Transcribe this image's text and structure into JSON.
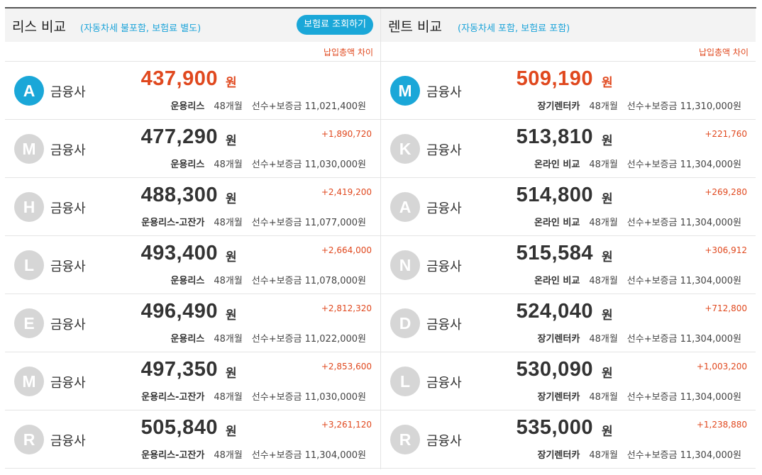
{
  "lease": {
    "title": "리스 비교",
    "subtitle": "(자동차세 불포함, 보험료 별도)",
    "button_label": "보험료 조회하기",
    "diff_header": "납입총액 차이",
    "rows": [
      {
        "badge": "A",
        "corp": "금융사",
        "price": "437,900",
        "won": "원",
        "diff": "",
        "ptype": "운용리스",
        "term": "48개월",
        "deposit": "선수+보증금 11,021,400원"
      },
      {
        "badge": "M",
        "corp": "금융사",
        "price": "477,290",
        "won": "원",
        "diff": "+1,890,720",
        "ptype": "운용리스",
        "term": "48개월",
        "deposit": "선수+보증금 11,030,000원"
      },
      {
        "badge": "H",
        "corp": "금융사",
        "price": "488,300",
        "won": "원",
        "diff": "+2,419,200",
        "ptype": "운용리스-고잔가",
        "term": "48개월",
        "deposit": "선수+보증금 11,077,000원"
      },
      {
        "badge": "L",
        "corp": "금융사",
        "price": "493,400",
        "won": "원",
        "diff": "+2,664,000",
        "ptype": "운용리스",
        "term": "48개월",
        "deposit": "선수+보증금 11,078,000원"
      },
      {
        "badge": "E",
        "corp": "금융사",
        "price": "496,490",
        "won": "원",
        "diff": "+2,812,320",
        "ptype": "운용리스",
        "term": "48개월",
        "deposit": "선수+보증금 11,022,000원"
      },
      {
        "badge": "M",
        "corp": "금융사",
        "price": "497,350",
        "won": "원",
        "diff": "+2,853,600",
        "ptype": "운용리스-고잔가",
        "term": "48개월",
        "deposit": "선수+보증금 11,030,000원"
      },
      {
        "badge": "R",
        "corp": "금융사",
        "price": "505,840",
        "won": "원",
        "diff": "+3,261,120",
        "ptype": "운용리스-고잔가",
        "term": "48개월",
        "deposit": "선수+보증금 11,304,000원"
      }
    ]
  },
  "rent": {
    "title": "렌트 비교",
    "subtitle": "(자동차세 포함, 보험료 포함)",
    "diff_header": "납입총액 차이",
    "rows": [
      {
        "badge": "M",
        "corp": "금융사",
        "price": "509,190",
        "won": "원",
        "diff": "",
        "ptype": "장기렌터카",
        "term": "48개월",
        "deposit": "선수+보증금 11,310,000원"
      },
      {
        "badge": "K",
        "corp": "금융사",
        "price": "513,810",
        "won": "원",
        "diff": "+221,760",
        "ptype": "온라인 비교",
        "term": "48개월",
        "deposit": "선수+보증금 11,304,000원"
      },
      {
        "badge": "A",
        "corp": "금융사",
        "price": "514,800",
        "won": "원",
        "diff": "+269,280",
        "ptype": "온라인 비교",
        "term": "48개월",
        "deposit": "선수+보증금 11,304,000원"
      },
      {
        "badge": "N",
        "corp": "금융사",
        "price": "515,584",
        "won": "원",
        "diff": "+306,912",
        "ptype": "온라인 비교",
        "term": "48개월",
        "deposit": "선수+보증금 11,304,000원"
      },
      {
        "badge": "D",
        "corp": "금융사",
        "price": "524,040",
        "won": "원",
        "diff": "+712,800",
        "ptype": "장기렌터카",
        "term": "48개월",
        "deposit": "선수+보증금 11,304,000원"
      },
      {
        "badge": "L",
        "corp": "금융사",
        "price": "530,090",
        "won": "원",
        "diff": "+1,003,200",
        "ptype": "장기렌터카",
        "term": "48개월",
        "deposit": "선수+보증금 11,304,000원"
      },
      {
        "badge": "R",
        "corp": "금융사",
        "price": "535,000",
        "won": "원",
        "diff": "+1,238,880",
        "ptype": "장기렌터카",
        "term": "48개월",
        "deposit": "선수+보증금 11,304,000원"
      }
    ]
  },
  "colors": {
    "accent_blue": "#1aa7d8",
    "highlight_red": "#e0481e",
    "badge_gray": "#d6d6d6"
  }
}
